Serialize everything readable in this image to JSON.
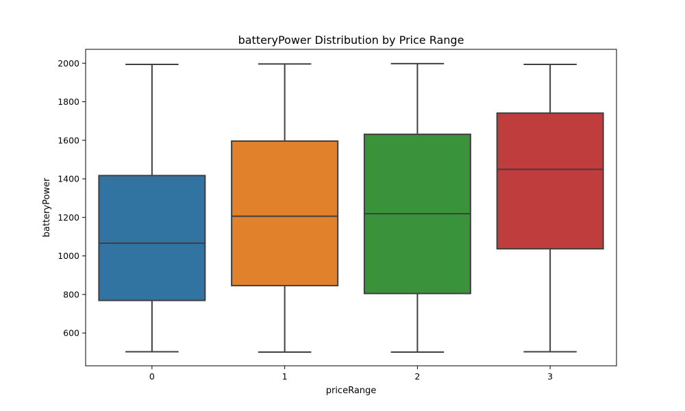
{
  "chart_data": {
    "type": "box",
    "title": "batteryPower Distribution by Price Range",
    "xlabel": "priceRange",
    "ylabel": "batteryPower",
    "ylim": [
      430,
      2072
    ],
    "yticks": [
      600,
      800,
      1000,
      1200,
      1400,
      1600,
      1800,
      2000
    ],
    "grid": false,
    "categories": [
      "0",
      "1",
      "2",
      "3"
    ],
    "boxes": [
      {
        "category": "0",
        "min": 503,
        "q1": 769,
        "median": 1066,
        "q3": 1417,
        "max": 1994,
        "color": "#3274a1"
      },
      {
        "category": "1",
        "min": 501,
        "q1": 846,
        "median": 1206,
        "q3": 1596,
        "max": 1996,
        "color": "#e1812c"
      },
      {
        "category": "2",
        "min": 501,
        "q1": 805,
        "median": 1219,
        "q3": 1631,
        "max": 1998,
        "color": "#3a923a"
      },
      {
        "category": "3",
        "min": 503,
        "q1": 1037,
        "median": 1449,
        "q3": 1741,
        "max": 1994,
        "color": "#c03d3e"
      }
    ]
  }
}
